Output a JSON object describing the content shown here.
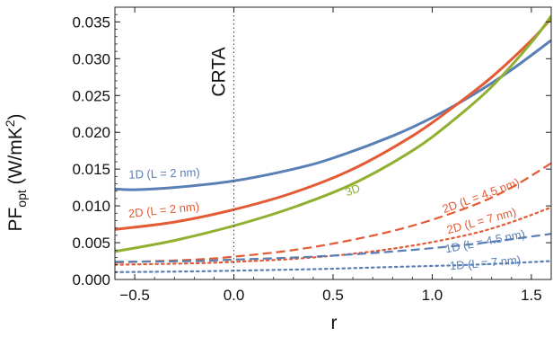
{
  "chart_data": {
    "type": "line",
    "xlabel": "r",
    "ylabel": {
      "prefix": "PF",
      "subscript": "opt",
      "units": " (W/mK",
      "superscript": "2",
      "close": ")"
    },
    "xlim": [
      -0.6,
      1.6
    ],
    "ylim": [
      0.0,
      0.037
    ],
    "xticks": [
      -0.5,
      0.0,
      0.5,
      1.0,
      1.5
    ],
    "xtick_labels": [
      "−0.5",
      "0.0",
      "0.5",
      "1.0",
      "1.5"
    ],
    "yticks": [
      0.0,
      0.005,
      0.01,
      0.015,
      0.02,
      0.025,
      0.03,
      0.035
    ],
    "ytick_labels": [
      "0.000",
      "0.005",
      "0.010",
      "0.015",
      "0.020",
      "0.025",
      "0.030",
      "0.035"
    ],
    "grid": false,
    "legend": "none",
    "reference_line": {
      "x": 0.0,
      "label": "CRTA",
      "style": "dotted"
    },
    "series": [
      {
        "name": "1D (L = 2 nm)",
        "color": "#5a7fb5",
        "dash": "solid",
        "x": [
          -0.6,
          -0.5,
          -0.3,
          0.0,
          0.3,
          0.5,
          0.8,
          1.0,
          1.2,
          1.4,
          1.6
        ],
        "y": [
          0.0123,
          0.0122,
          0.0125,
          0.0134,
          0.015,
          0.0165,
          0.0195,
          0.022,
          0.025,
          0.0285,
          0.0325
        ]
      },
      {
        "name": "2D (L = 2 nm)",
        "color": "#e35a35",
        "dash": "solid",
        "x": [
          -0.6,
          -0.3,
          0.0,
          0.3,
          0.6,
          0.9,
          1.1,
          1.3,
          1.5,
          1.6
        ],
        "y": [
          0.0068,
          0.0078,
          0.0095,
          0.0118,
          0.015,
          0.0195,
          0.0233,
          0.0275,
          0.0325,
          0.0355
        ]
      },
      {
        "name": "3D",
        "color": "#8fb030",
        "dash": "solid",
        "x": [
          -0.6,
          -0.3,
          0.0,
          0.3,
          0.6,
          0.9,
          1.1,
          1.3,
          1.5,
          1.6
        ],
        "y": [
          0.0038,
          0.0053,
          0.0073,
          0.0098,
          0.013,
          0.0175,
          0.0215,
          0.0262,
          0.0322,
          0.0358
        ]
      },
      {
        "name": "2D (L = 4.5 nm)",
        "color": "#e35a35",
        "dash": "dashed",
        "x": [
          -0.6,
          -0.2,
          0.0,
          0.3,
          0.6,
          0.9,
          1.2,
          1.4,
          1.6
        ],
        "y": [
          0.0023,
          0.0027,
          0.0031,
          0.004,
          0.0054,
          0.0073,
          0.01,
          0.0125,
          0.0158
        ]
      },
      {
        "name": "2D (L = 7 nm)",
        "color": "#e35a35",
        "dash": "dotted",
        "x": [
          -0.6,
          -0.2,
          0.0,
          0.3,
          0.6,
          0.9,
          1.2,
          1.4,
          1.6
        ],
        "y": [
          0.002,
          0.0022,
          0.0024,
          0.0028,
          0.0035,
          0.0046,
          0.0062,
          0.0078,
          0.0098
        ]
      },
      {
        "name": "1D (L = 4.5 nm)",
        "color": "#5a7fb5",
        "dash": "dashed",
        "x": [
          -0.6,
          -0.2,
          0.0,
          0.4,
          0.8,
          1.2,
          1.6
        ],
        "y": [
          0.0024,
          0.0025,
          0.0027,
          0.0031,
          0.0038,
          0.0048,
          0.0062
        ]
      },
      {
        "name": "1D (L = 7 nm)",
        "color": "#5a7fb5",
        "dash": "dotted",
        "x": [
          -0.6,
          -0.2,
          0.0,
          0.4,
          0.8,
          1.2,
          1.6
        ],
        "y": [
          0.001,
          0.0011,
          0.0012,
          0.0014,
          0.0017,
          0.002,
          0.0025
        ]
      }
    ],
    "annotations": [
      {
        "text": "1D (L = 2 nm)",
        "color": "#5a7fb5",
        "x": -0.53,
        "y": 0.0137,
        "rotate": -2
      },
      {
        "text": "2D (L = 2 nm)",
        "color": "#e35a35",
        "x": -0.53,
        "y": 0.0084,
        "rotate": -6
      },
      {
        "text": "3D",
        "color": "#8fb030",
        "x": 0.57,
        "y": 0.0113,
        "rotate": -20
      },
      {
        "text": "2D (L = 4.5 nm)",
        "color": "#e35a35",
        "x": 1.06,
        "y": 0.009,
        "rotate": -20
      },
      {
        "text": "2D (L = 7 nm)",
        "color": "#e35a35",
        "x": 1.08,
        "y": 0.0062,
        "rotate": -15
      },
      {
        "text": "1D (L = 4.5 nm)",
        "color": "#5a7fb5",
        "x": 1.07,
        "y": 0.0036,
        "rotate": -11
      },
      {
        "text": "1D (L = 7 nm)",
        "color": "#5a7fb5",
        "x": 1.09,
        "y": 0.0013,
        "rotate": -5
      }
    ]
  }
}
